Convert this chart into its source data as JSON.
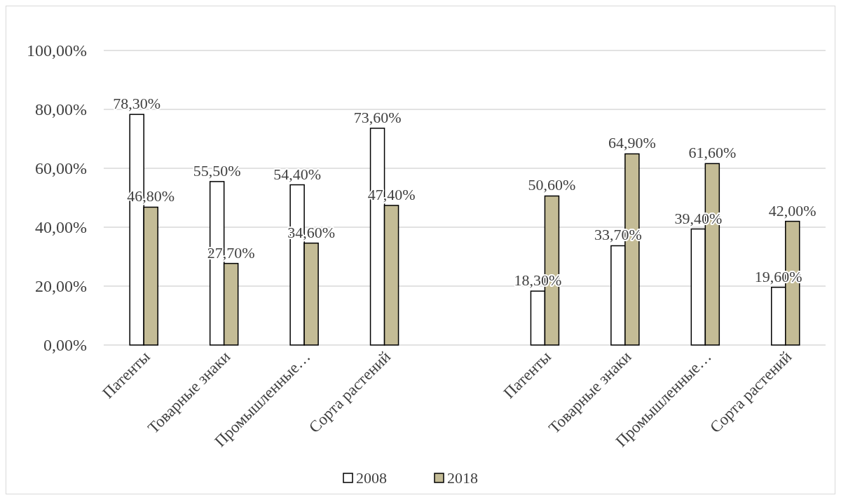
{
  "chart_data": {
    "type": "bar",
    "categories": [
      "Патенты",
      "Товарные знаки",
      "Промышленные…",
      "Сорта растений",
      null,
      "Патенты",
      "Товарные знаки",
      "Промышленные…",
      "Сорта растений"
    ],
    "series": [
      {
        "name": "2008",
        "color": "#ffffff",
        "values": [
          78.3,
          55.5,
          54.4,
          73.6,
          null,
          18.3,
          33.7,
          39.4,
          19.6
        ],
        "value_labels": [
          "78,30%",
          "55,50%",
          "54,40%",
          "73,60%",
          null,
          "18,30%",
          "33,70%",
          "39,40%",
          "19,60%"
        ]
      },
      {
        "name": "2018",
        "color": "#c4bc96",
        "values": [
          46.8,
          27.7,
          34.6,
          47.4,
          null,
          50.6,
          64.9,
          61.6,
          42.0
        ],
        "value_labels": [
          "46,80%",
          "27,70%",
          "34,60%",
          "47,40%",
          null,
          "50,60%",
          "64,90%",
          "61,60%",
          "42,00%"
        ]
      }
    ],
    "ylim": [
      0,
      100
    ],
    "yticks": [
      {
        "value": 0,
        "label": "0,00%"
      },
      {
        "value": 20,
        "label": "20,00%"
      },
      {
        "value": 40,
        "label": "40,00%"
      },
      {
        "value": 60,
        "label": "60,00%"
      },
      {
        "value": 80,
        "label": "80,00%"
      },
      {
        "value": 100,
        "label": "100,00%"
      }
    ],
    "grid": "y",
    "legend": "bottom"
  }
}
